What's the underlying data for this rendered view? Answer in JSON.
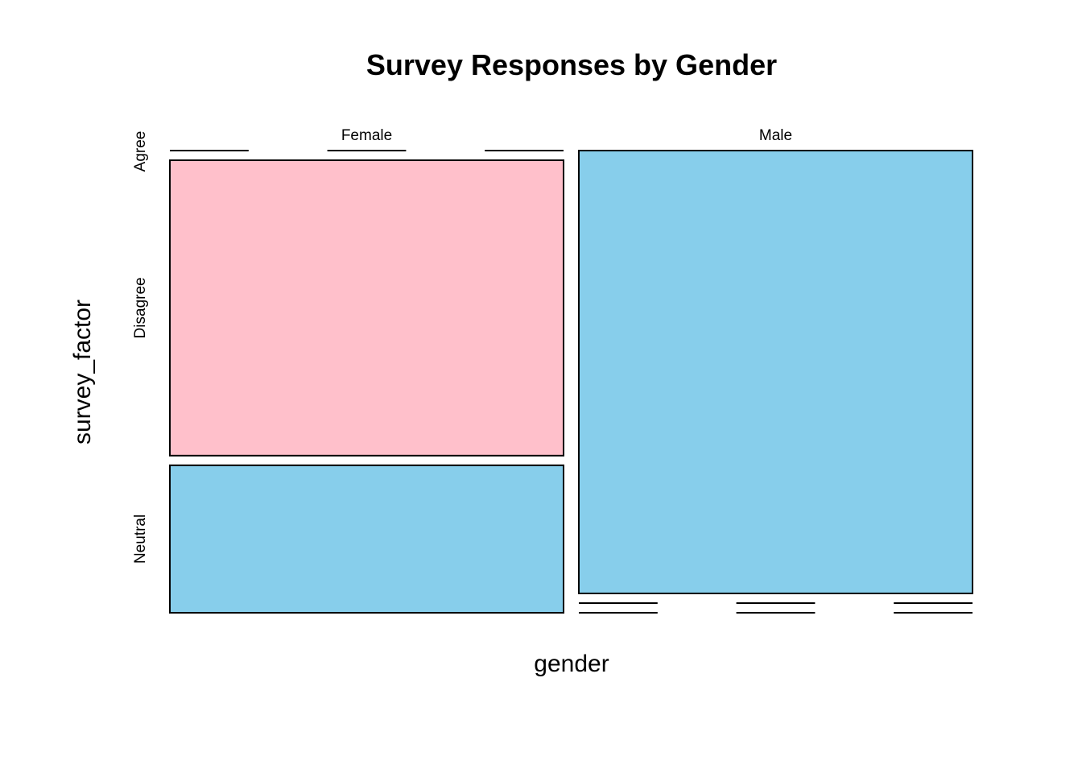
{
  "chart_data": {
    "type": "mosaic",
    "title": "Survey Responses by Gender",
    "xlabel": "gender",
    "ylabel": "survey_factor",
    "x_categories": [
      "Female",
      "Male"
    ],
    "y_categories": [
      "Agree",
      "Disagree",
      "Neutral"
    ],
    "column_proportions": [
      0.5,
      0.5
    ],
    "cells": [
      {
        "gender": "Female",
        "survey_factor": "Agree",
        "proportion": 0.0,
        "color": null
      },
      {
        "gender": "Female",
        "survey_factor": "Disagree",
        "proportion": 0.667,
        "color": "#FFC0CB"
      },
      {
        "gender": "Female",
        "survey_factor": "Neutral",
        "proportion": 0.333,
        "color": "#87CEEB"
      },
      {
        "gender": "Male",
        "survey_factor": "Agree",
        "proportion": 1.0,
        "color": "#87CEEB"
      },
      {
        "gender": "Male",
        "survey_factor": "Disagree",
        "proportion": 0.0,
        "color": null
      },
      {
        "gender": "Male",
        "survey_factor": "Neutral",
        "proportion": 0.0,
        "color": null
      }
    ],
    "colors": {
      "pink": "#FFC0CB",
      "skyblue": "#87CEEB",
      "border": "#000000"
    },
    "grid": false,
    "legend": "none"
  }
}
